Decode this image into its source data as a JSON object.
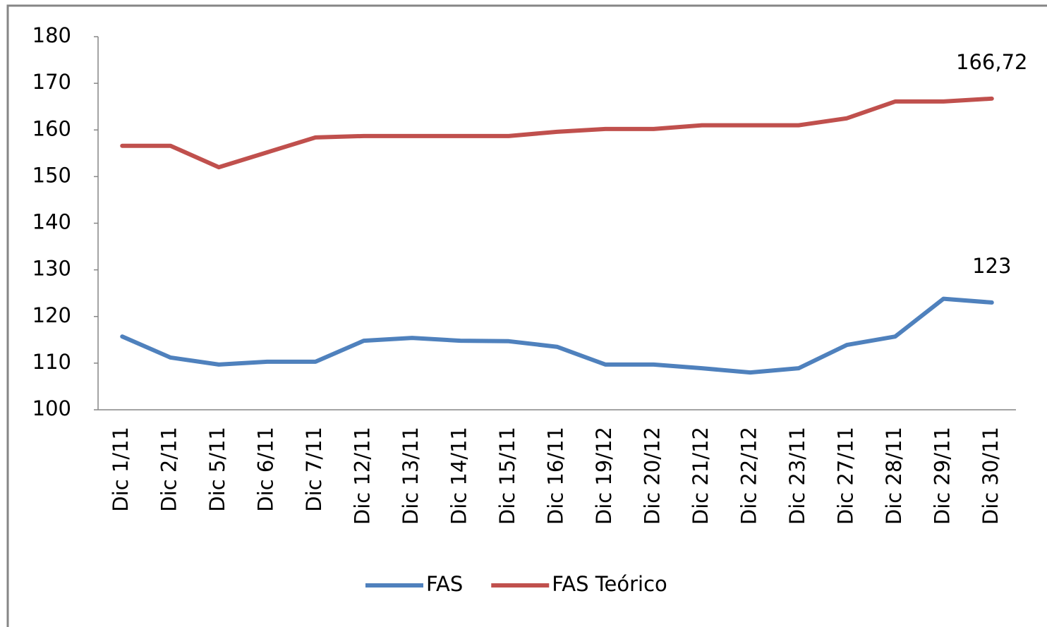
{
  "chart_data": {
    "type": "line",
    "categories": [
      "Dic 1/11",
      "Dic 2/11",
      "Dic 5/11",
      "Dic 6/11",
      "Dic 7/11",
      "Dic 12/11",
      "Dic 13/11",
      "Dic 14/11",
      "Dic 15/11",
      "Dic 16/11",
      "Dic 19/12",
      "Dic 20/12",
      "Dic 21/12",
      "Dic 22/12",
      "Dic 23/11",
      "Dic 27/11",
      "Dic 28/11",
      "Dic 29/11",
      "Dic 30/11"
    ],
    "series": [
      {
        "name": "FAS",
        "color": "#4f81bd",
        "values": [
          115.7,
          111.2,
          109.7,
          110.3,
          110.3,
          114.8,
          115.4,
          114.8,
          114.7,
          113.5,
          109.7,
          109.7,
          108.9,
          108,
          108.9,
          113.9,
          115.7,
          123.8,
          123
        ],
        "value_labels": [
          null,
          null,
          null,
          null,
          null,
          null,
          null,
          null,
          null,
          null,
          null,
          null,
          null,
          null,
          null,
          null,
          null,
          null,
          "123"
        ]
      },
      {
        "name": "FAS Teórico",
        "color": "#c0504d",
        "values": [
          156.6,
          156.6,
          152,
          155.2,
          158.4,
          158.7,
          158.7,
          158.7,
          158.7,
          159.6,
          160.2,
          160.2,
          161,
          161,
          161,
          162.5,
          166.1,
          166.1,
          166.72
        ],
        "value_labels": [
          null,
          null,
          null,
          null,
          null,
          null,
          null,
          null,
          null,
          null,
          null,
          null,
          null,
          null,
          null,
          null,
          null,
          null,
          "166,72"
        ]
      }
    ],
    "ylim": [
      100,
      180
    ],
    "yticks": [
      100,
      110,
      120,
      130,
      140,
      150,
      160,
      170,
      180
    ],
    "grid": false,
    "legend": "bottom"
  }
}
